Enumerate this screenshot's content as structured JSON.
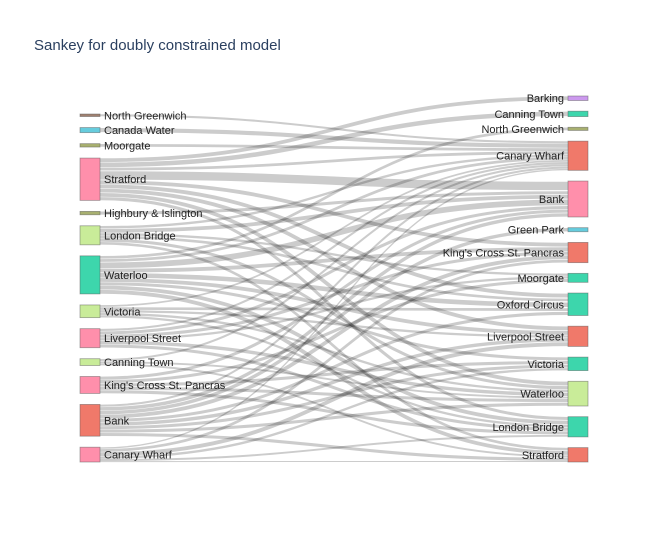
{
  "chart_data": {
    "type": "sankey",
    "title": "Sankey for doubly constrained model",
    "colors": {
      "pink": "#ff8fab",
      "salmon": "#f0796a",
      "teal": "#3dd6ac",
      "lightgreen": "#c9ec99",
      "lavender": "#cc99ee",
      "blue": "#66ccdd",
      "olive": "#a8b070",
      "brown": "#a08070",
      "link": "rgba(0,0,0,0.2)"
    },
    "sources": [
      {
        "name": "North Greenwich",
        "value": 0.6,
        "color": "brown"
      },
      {
        "name": "Canada Water",
        "value": 1.2,
        "color": "blue"
      },
      {
        "name": "Moorgate",
        "value": 0.8,
        "color": "olive"
      },
      {
        "name": "Stratford",
        "value": 10,
        "color": "pink"
      },
      {
        "name": "Highbury & Islington",
        "value": 0.8,
        "color": "olive"
      },
      {
        "name": "London Bridge",
        "value": 4.5,
        "color": "lightgreen"
      },
      {
        "name": "Waterloo",
        "value": 9,
        "color": "teal"
      },
      {
        "name": "Victoria",
        "value": 3,
        "color": "lightgreen"
      },
      {
        "name": "Liverpool Street",
        "value": 4.5,
        "color": "pink"
      },
      {
        "name": "Canning Town",
        "value": 1.6,
        "color": "lightgreen"
      },
      {
        "name": "King's Cross St. Pancras",
        "value": 4,
        "color": "pink"
      },
      {
        "name": "Bank",
        "value": 7.5,
        "color": "salmon"
      },
      {
        "name": "Canary Wharf",
        "value": 3.5,
        "color": "pink"
      }
    ],
    "targets": [
      {
        "name": "Barking",
        "value": 1,
        "color": "lavender"
      },
      {
        "name": "Canning Town",
        "value": 1.2,
        "color": "teal"
      },
      {
        "name": "North Greenwich",
        "value": 0.7,
        "color": "olive"
      },
      {
        "name": "Canary Wharf",
        "value": 6.5,
        "color": "salmon"
      },
      {
        "name": "Bank",
        "value": 8,
        "color": "pink"
      },
      {
        "name": "Green Park",
        "value": 0.9,
        "color": "blue"
      },
      {
        "name": "King's Cross St. Pancras",
        "value": 4.5,
        "color": "salmon"
      },
      {
        "name": "Moorgate",
        "value": 2,
        "color": "teal"
      },
      {
        "name": "Oxford Circus",
        "value": 5,
        "color": "teal"
      },
      {
        "name": "Liverpool Street",
        "value": 4.5,
        "color": "salmon"
      },
      {
        "name": "Victoria",
        "value": 3,
        "color": "teal"
      },
      {
        "name": "Waterloo",
        "value": 5.5,
        "color": "lightgreen"
      },
      {
        "name": "London Bridge",
        "value": 4.5,
        "color": "teal"
      },
      {
        "name": "Stratford",
        "value": 3.2,
        "color": "salmon"
      }
    ],
    "links": [
      [
        0,
        3,
        0.6
      ],
      [
        1,
        3,
        1.2
      ],
      [
        2,
        3,
        0.8
      ],
      [
        3,
        0,
        1.0
      ],
      [
        3,
        1,
        1.2
      ],
      [
        3,
        3,
        0.8
      ],
      [
        3,
        4,
        2.2
      ],
      [
        3,
        6,
        1.0
      ],
      [
        3,
        8,
        1.0
      ],
      [
        3,
        9,
        1.0
      ],
      [
        3,
        11,
        1.0
      ],
      [
        3,
        12,
        0.8
      ],
      [
        4,
        4,
        0.8
      ],
      [
        5,
        3,
        0.7
      ],
      [
        5,
        4,
        1.0
      ],
      [
        5,
        7,
        0.6
      ],
      [
        5,
        8,
        0.7
      ],
      [
        5,
        11,
        0.8
      ],
      [
        5,
        13,
        0.7
      ],
      [
        6,
        2,
        0.7
      ],
      [
        6,
        3,
        0.8
      ],
      [
        6,
        4,
        1.5
      ],
      [
        6,
        6,
        1.0
      ],
      [
        6,
        8,
        1.2
      ],
      [
        6,
        9,
        1.0
      ],
      [
        6,
        10,
        0.8
      ],
      [
        6,
        12,
        1.0
      ],
      [
        6,
        13,
        1.0
      ],
      [
        6,
        11,
        0.0
      ],
      [
        7,
        3,
        0.5
      ],
      [
        7,
        8,
        0.7
      ],
      [
        7,
        9,
        0.6
      ],
      [
        7,
        11,
        0.6
      ],
      [
        7,
        12,
        0.6
      ],
      [
        8,
        3,
        0.6
      ],
      [
        8,
        4,
        0.8
      ],
      [
        8,
        6,
        0.8
      ],
      [
        8,
        7,
        0.6
      ],
      [
        8,
        11,
        0.9
      ],
      [
        8,
        12,
        0.8
      ],
      [
        9,
        3,
        0.6
      ],
      [
        9,
        11,
        0.5
      ],
      [
        9,
        13,
        0.5
      ],
      [
        10,
        4,
        0.8
      ],
      [
        10,
        7,
        0.8
      ],
      [
        10,
        10,
        0.8
      ],
      [
        10,
        11,
        0.8
      ],
      [
        10,
        12,
        0.8
      ],
      [
        11,
        3,
        0.6
      ],
      [
        11,
        4,
        0.9
      ],
      [
        11,
        5,
        0.9
      ],
      [
        11,
        6,
        1.0
      ],
      [
        11,
        8,
        0.8
      ],
      [
        11,
        9,
        0.9
      ],
      [
        11,
        10,
        0.8
      ],
      [
        11,
        11,
        0.8
      ],
      [
        11,
        13,
        0.8
      ],
      [
        12,
        3,
        0.4
      ],
      [
        12,
        4,
        0.0
      ],
      [
        12,
        6,
        0.7
      ],
      [
        12,
        9,
        1.0
      ],
      [
        12,
        10,
        0.6
      ],
      [
        12,
        12,
        0.5
      ],
      [
        12,
        13,
        0.2
      ]
    ]
  }
}
